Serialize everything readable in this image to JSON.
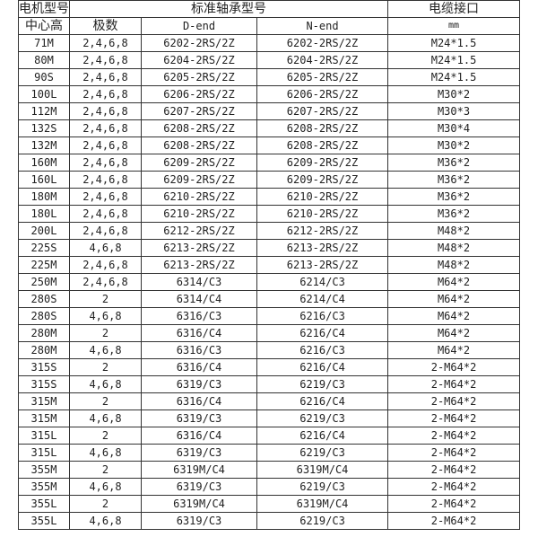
{
  "header": {
    "motor_model": "电机型号",
    "standard_bearing": "标准轴承型号",
    "cable_interface": "电缆接口",
    "frame_size": "中心高",
    "poles": "极数",
    "d_end": "D-end",
    "n_end": "N-end",
    "unit": "mm"
  },
  "rows": [
    [
      "71M",
      "2,4,6,8",
      "6202-2RS/2Z",
      "6202-2RS/2Z",
      "M24*1.5"
    ],
    [
      "80M",
      "2,4,6,8",
      "6204-2RS/2Z",
      "6204-2RS/2Z",
      "M24*1.5"
    ],
    [
      "90S",
      "2,4,6,8",
      "6205-2RS/2Z",
      "6205-2RS/2Z",
      "M24*1.5"
    ],
    [
      "100L",
      "2,4,6,8",
      "6206-2RS/2Z",
      "6206-2RS/2Z",
      "M30*2"
    ],
    [
      "112M",
      "2,4,6,8",
      "6207-2RS/2Z",
      "6207-2RS/2Z",
      "M30*3"
    ],
    [
      "132S",
      "2,4,6,8",
      "6208-2RS/2Z",
      "6208-2RS/2Z",
      "M30*4"
    ],
    [
      "132M",
      "2,4,6,8",
      "6208-2RS/2Z",
      "6208-2RS/2Z",
      "M30*2"
    ],
    [
      "160M",
      "2,4,6,8",
      "6209-2RS/2Z",
      "6209-2RS/2Z",
      "M36*2"
    ],
    [
      "160L",
      "2,4,6,8",
      "6209-2RS/2Z",
      "6209-2RS/2Z",
      "M36*2"
    ],
    [
      "180M",
      "2,4,6,8",
      "6210-2RS/2Z",
      "6210-2RS/2Z",
      "M36*2"
    ],
    [
      "180L",
      "2,4,6,8",
      "6210-2RS/2Z",
      "6210-2RS/2Z",
      "M36*2"
    ],
    [
      "200L",
      "2,4,6,8",
      "6212-2RS/2Z",
      "6212-2RS/2Z",
      "M48*2"
    ],
    [
      "225S",
      "4,6,8",
      "6213-2RS/2Z",
      "6213-2RS/2Z",
      "M48*2"
    ],
    [
      "225M",
      "2,4,6,8",
      "6213-2RS/2Z",
      "6213-2RS/2Z",
      "M48*2"
    ],
    [
      "250M",
      "2,4,6,8",
      "6314/C3",
      "6214/C3",
      "M64*2"
    ],
    [
      "280S",
      "2",
      "6314/C4",
      "6214/C4",
      "M64*2"
    ],
    [
      "280S",
      "4,6,8",
      "6316/C3",
      "6216/C3",
      "M64*2"
    ],
    [
      "280M",
      "2",
      "6316/C4",
      "6216/C4",
      "M64*2"
    ],
    [
      "280M",
      "4,6,8",
      "6316/C3",
      "6216/C3",
      "M64*2"
    ],
    [
      "315S",
      "2",
      "6316/C4",
      "6216/C4",
      "2-M64*2"
    ],
    [
      "315S",
      "4,6,8",
      "6319/C3",
      "6219/C3",
      "2-M64*2"
    ],
    [
      "315M",
      "2",
      "6316/C4",
      "6216/C4",
      "2-M64*2"
    ],
    [
      "315M",
      "4,6,8",
      "6319/C3",
      "6219/C3",
      "2-M64*2"
    ],
    [
      "315L",
      "2",
      "6316/C4",
      "6216/C4",
      "2-M64*2"
    ],
    [
      "315L",
      "4,6,8",
      "6319/C3",
      "6219/C3",
      "2-M64*2"
    ],
    [
      "355M",
      "2",
      "6319M/C4",
      "6319M/C4",
      "2-M64*2"
    ],
    [
      "355M",
      "4,6,8",
      "6319/C3",
      "6219/C3",
      "2-M64*2"
    ],
    [
      "355L",
      "2",
      "6319M/C4",
      "6319M/C4",
      "2-M64*2"
    ],
    [
      "355L",
      "4,6,8",
      "6319/C3",
      "6219/C3",
      "2-M64*2"
    ]
  ]
}
